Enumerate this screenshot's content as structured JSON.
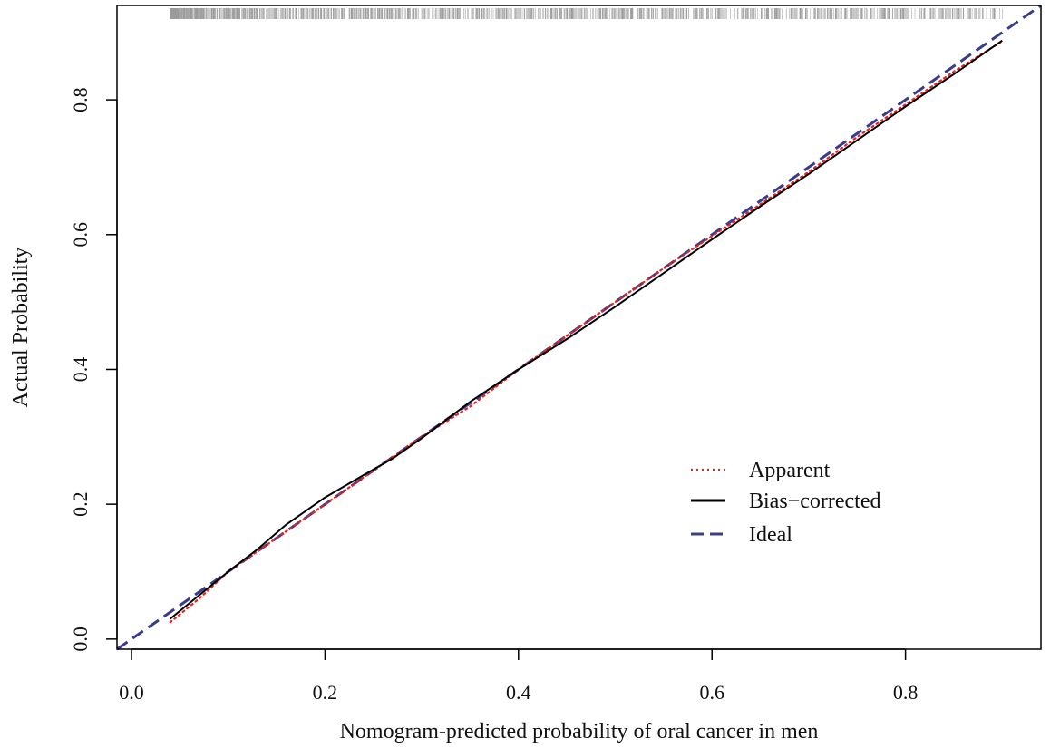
{
  "chart_data": {
    "type": "line",
    "title": "",
    "xlabel": "Nomogram-predicted probability of oral cancer in men",
    "ylabel": "Actual Probability",
    "xlim": [
      -0.015,
      0.94
    ],
    "ylim": [
      -0.015,
      0.94
    ],
    "x_ticks": [
      0.0,
      0.2,
      0.4,
      0.6,
      0.8
    ],
    "x_tick_labels": [
      "0.0",
      "0.2",
      "0.4",
      "0.6",
      "0.8"
    ],
    "y_ticks": [
      0.0,
      0.2,
      0.4,
      0.6,
      0.8
    ],
    "y_tick_labels": [
      "0.0",
      "0.2",
      "0.4",
      "0.6",
      "0.8"
    ],
    "grid": false,
    "legend_position": "lower-right",
    "series": [
      {
        "name": "Apparent",
        "style": "dotted",
        "color": "#e8211d",
        "x": [
          0.04,
          0.07,
          0.1,
          0.13,
          0.16,
          0.2,
          0.23,
          0.27,
          0.3,
          0.35,
          0.4,
          0.45,
          0.5,
          0.55,
          0.6,
          0.65,
          0.7,
          0.75,
          0.8,
          0.85,
          0.9
        ],
        "y": [
          0.025,
          0.06,
          0.1,
          0.13,
          0.16,
          0.2,
          0.23,
          0.27,
          0.3,
          0.345,
          0.4,
          0.45,
          0.5,
          0.55,
          0.598,
          0.645,
          0.693,
          0.745,
          0.793,
          0.842,
          0.887
        ]
      },
      {
        "name": "Bias−corrected",
        "style": "solid",
        "color": "#000000",
        "x": [
          0.04,
          0.07,
          0.1,
          0.13,
          0.16,
          0.2,
          0.23,
          0.27,
          0.3,
          0.35,
          0.4,
          0.45,
          0.5,
          0.55,
          0.6,
          0.65,
          0.7,
          0.75,
          0.8,
          0.85,
          0.9
        ],
        "y": [
          0.03,
          0.065,
          0.1,
          0.133,
          0.17,
          0.21,
          0.235,
          0.268,
          0.298,
          0.352,
          0.4,
          0.445,
          0.493,
          0.543,
          0.593,
          0.642,
          0.69,
          0.74,
          0.79,
          0.838,
          0.888
        ]
      },
      {
        "name": "Ideal",
        "style": "dashed",
        "color": "#3c3c8c",
        "x": [
          -0.015,
          0.94
        ],
        "y": [
          -0.015,
          0.94
        ]
      }
    ]
  }
}
